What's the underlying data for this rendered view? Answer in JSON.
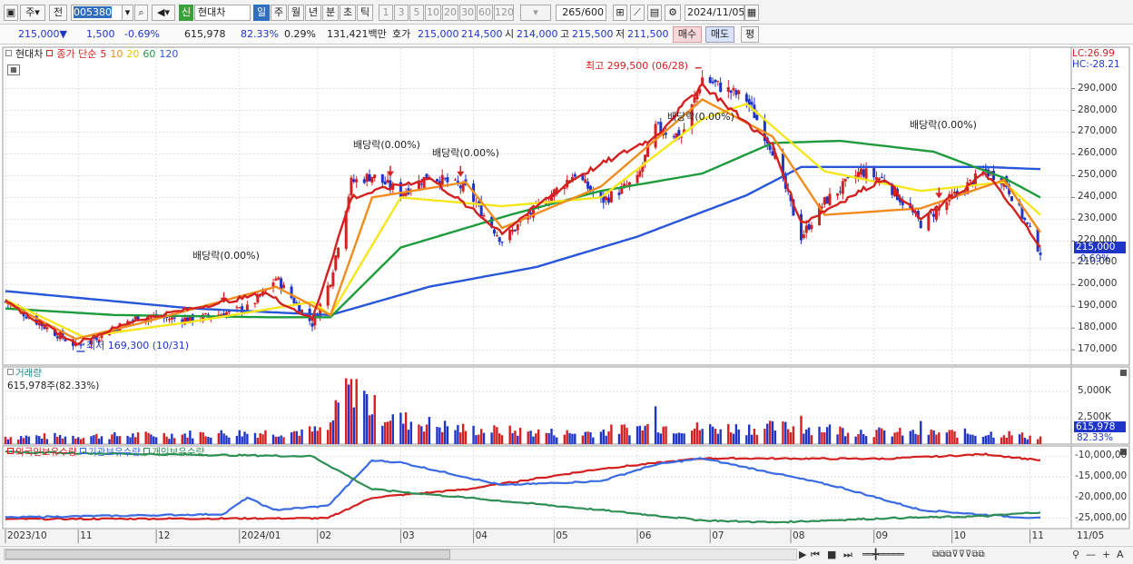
{
  "toolbar": {
    "type_label": "주",
    "prev_label": "전",
    "code": "005380",
    "listing_badge": "신",
    "stock_name": "현대차",
    "periods": [
      "일",
      "주",
      "월",
      "년",
      "분",
      "초",
      "틱"
    ],
    "active_period": "일",
    "intervals": [
      "1",
      "3",
      "5",
      "10",
      "20",
      "30",
      "60",
      "120"
    ],
    "count": "265",
    "count_max": "/600",
    "date": "2024/11/05"
  },
  "quote": {
    "price": "215,000",
    "direction": "▼",
    "change": "1,500",
    "change_pct": "-0.69%",
    "volume": "615,978",
    "volume_ratio": "82.33%",
    "turnover_pct": "0.29%",
    "amount": "131,421백만",
    "bid_label": "호가",
    "ask_price": "215,000",
    "bid_price": "214,500",
    "open_label": "시",
    "open": "214,000",
    "high_label": "고",
    "high": "215,500",
    "low_label": "저",
    "low": "211,500",
    "buy_label": "매수",
    "sell_label": "매도",
    "eval_label": "평"
  },
  "price_panel": {
    "stock_label": "현대차",
    "ma_label": "종가 단순",
    "ma_periods": [
      "5",
      "10",
      "20",
      "60",
      "120"
    ],
    "lc": "LC:26.99",
    "hc": "HC:-28.21",
    "current_price": "215,000",
    "current_pct": "-0.69%",
    "high_annotation": "최고 299,500 (06/28)",
    "low_annotation": "최저 169,300 (10/31)",
    "dividend_annotation": "배당락(0.00%)"
  },
  "volume_panel": {
    "title": "거래량",
    "value_label": "615,978주(82.33%)",
    "current": "615,978",
    "pct": "82.33%"
  },
  "holding_panel": {
    "series_labels": [
      "외국인보유수량",
      "기관보유수량",
      "개인보유수량"
    ]
  },
  "x_axis": [
    "2023/10",
    "11",
    "12",
    "2024/01",
    "02",
    "03",
    "04",
    "05",
    "06",
    "07",
    "08",
    "09",
    "10",
    "11",
    "11/05"
  ],
  "colors": {
    "up": "#d32020",
    "down": "#1f35c7",
    "ma5": "#d32020",
    "ma10": "#f08c1e",
    "ma20": "#f5e61e",
    "ma60": "#1e9b3c",
    "ma120": "#2856d8",
    "foreign": "#d32020",
    "institution": "#3a6be0",
    "individual": "#2e8f55",
    "grid": "#dedede"
  },
  "chart_data": [
    {
      "type": "candlestick",
      "title": "현대차",
      "y_axis_ticks": [
        170000,
        180000,
        190000,
        200000,
        210000,
        220000,
        230000,
        240000,
        250000,
        260000,
        270000,
        280000,
        290000
      ],
      "ylim": [
        163000,
        309000
      ],
      "x_months": [
        "2023/10",
        "11",
        "12",
        "2024/01",
        "02",
        "03",
        "04",
        "05",
        "06",
        "07",
        "08",
        "09",
        "10",
        "11"
      ],
      "close_anchors": [
        [
          "2023-10-04",
          192000
        ],
        [
          "2023-10-20",
          180000
        ],
        [
          "2023-10-31",
          172000
        ],
        [
          "2023-11-10",
          177000
        ],
        [
          "2023-11-24",
          185000
        ],
        [
          "2023-12-15",
          184000
        ],
        [
          "2024-01-05",
          189000
        ],
        [
          "2024-01-12",
          197000
        ],
        [
          "2024-01-16",
          203000
        ],
        [
          "2024-01-30",
          182000
        ],
        [
          "2024-02-06",
          202000
        ],
        [
          "2024-02-14",
          247000
        ],
        [
          "2024-02-22",
          250000
        ],
        [
          "2024-03-04",
          242000
        ],
        [
          "2024-03-15",
          250000
        ],
        [
          "2024-03-29",
          244000
        ],
        [
          "2024-04-12",
          220000
        ],
        [
          "2024-04-25",
          235000
        ],
        [
          "2024-05-10",
          251000
        ],
        [
          "2024-05-20",
          238000
        ],
        [
          "2024-06-03",
          248000
        ],
        [
          "2024-06-10",
          272000
        ],
        [
          "2024-06-20",
          268000
        ],
        [
          "2024-06-28",
          295000
        ],
        [
          "2024-07-15",
          285000
        ],
        [
          "2024-07-25",
          262000
        ],
        [
          "2024-08-05",
          222000
        ],
        [
          "2024-08-14",
          238000
        ],
        [
          "2024-08-28",
          252000
        ],
        [
          "2024-09-06",
          248000
        ],
        [
          "2024-09-20",
          228000
        ],
        [
          "2024-10-04",
          242000
        ],
        [
          "2024-10-15",
          252000
        ],
        [
          "2024-10-22",
          248000
        ],
        [
          "2024-11-05",
          215000
        ]
      ],
      "ma": {
        "5": [
          [
            "2023-10-04",
            192000
          ],
          [
            "2023-10-31",
            173000
          ],
          [
            "2023-11-24",
            184000
          ],
          [
            "2024-01-12",
            196000
          ],
          [
            "2024-01-30",
            184000
          ],
          [
            "2024-02-14",
            240000
          ],
          [
            "2024-03-15",
            249000
          ],
          [
            "2024-04-12",
            224000
          ],
          [
            "2024-05-10",
            249000
          ],
          [
            "2024-06-10",
            268000
          ],
          [
            "2024-06-28",
            292000
          ],
          [
            "2024-07-25",
            264000
          ],
          [
            "2024-08-05",
            228000
          ],
          [
            "2024-09-06",
            249000
          ],
          [
            "2024-09-20",
            230000
          ],
          [
            "2024-10-15",
            251000
          ],
          [
            "2024-11-05",
            218000
          ]
        ],
        "10": [
          [
            "2023-10-04",
            192000
          ],
          [
            "2023-10-31",
            175000
          ],
          [
            "2023-11-24",
            182000
          ],
          [
            "2024-01-16",
            199000
          ],
          [
            "2024-02-06",
            186000
          ],
          [
            "2024-02-22",
            240000
          ],
          [
            "2024-03-29",
            247000
          ],
          [
            "2024-04-12",
            226000
          ],
          [
            "2024-05-20",
            245000
          ],
          [
            "2024-06-28",
            285000
          ],
          [
            "2024-07-25",
            268000
          ],
          [
            "2024-08-14",
            232000
          ],
          [
            "2024-09-20",
            235000
          ],
          [
            "2024-10-22",
            248000
          ],
          [
            "2024-11-05",
            224000
          ]
        ],
        "20": [
          [
            "2023-10-04",
            193000
          ],
          [
            "2023-11-03",
            176000
          ],
          [
            "2023-12-15",
            183000
          ],
          [
            "2024-01-30",
            192000
          ],
          [
            "2024-02-06",
            186000
          ],
          [
            "2024-03-04",
            240000
          ],
          [
            "2024-04-12",
            236000
          ],
          [
            "2024-05-20",
            240000
          ],
          [
            "2024-06-28",
            276000
          ],
          [
            "2024-07-15",
            283000
          ],
          [
            "2024-08-14",
            252000
          ],
          [
            "2024-09-20",
            243000
          ],
          [
            "2024-10-22",
            247000
          ],
          [
            "2024-11-05",
            232000
          ]
        ],
        "60": [
          [
            "2023-10-04",
            189000
          ],
          [
            "2023-11-15",
            186000
          ],
          [
            "2024-01-12",
            185000
          ],
          [
            "2024-02-06",
            185000
          ],
          [
            "2024-03-04",
            217000
          ],
          [
            "2024-04-15",
            232000
          ],
          [
            "2024-05-20",
            243000
          ],
          [
            "2024-06-28",
            251000
          ],
          [
            "2024-07-25",
            265000
          ],
          [
            "2024-08-20",
            266000
          ],
          [
            "2024-09-25",
            261000
          ],
          [
            "2024-10-22",
            249000
          ],
          [
            "2024-11-05",
            240000
          ]
        ],
        "120": [
          [
            "2023-10-04",
            197000
          ],
          [
            "2023-12-15",
            189000
          ],
          [
            "2024-02-06",
            186000
          ],
          [
            "2024-03-15",
            199000
          ],
          [
            "2024-04-25",
            208000
          ],
          [
            "2024-06-03",
            222000
          ],
          [
            "2024-07-15",
            241000
          ],
          [
            "2024-08-05",
            254000
          ],
          [
            "2024-09-20",
            254000
          ],
          [
            "2024-10-15",
            254000
          ],
          [
            "2024-11-05",
            253000
          ]
        ]
      },
      "events": [
        {
          "label": "배당락(0.00%)",
          "date": "2023-12-27"
        },
        {
          "label": "배당락(0.00%)",
          "date": "2024-02-29"
        },
        {
          "label": "배당락(0.00%)",
          "date": "2024-03-27"
        },
        {
          "label": "배당락(0.00%)",
          "date": "2024-09-27"
        }
      ],
      "high": {
        "value": 299500,
        "date": "2024-06-28"
      },
      "low": {
        "value": 169300,
        "date": "2023-10-31"
      }
    },
    {
      "type": "bar",
      "title": "거래량",
      "y_axis_ticks": [
        "2,500K",
        "5,000K"
      ],
      "ylim": [
        0,
        7000000
      ],
      "volume_anchors": [
        [
          "2023-10-04",
          700000
        ],
        [
          "2023-11-15",
          800000
        ],
        [
          "2024-01-12",
          1100000
        ],
        [
          "2024-02-05",
          1300000
        ],
        [
          "2024-02-14",
          6200000
        ],
        [
          "2024-02-22",
          3400000
        ],
        [
          "2024-03-04",
          2300000
        ],
        [
          "2024-03-29",
          1400000
        ],
        [
          "2024-05-10",
          1000000
        ],
        [
          "2024-06-10",
          1700000
        ],
        [
          "2024-06-28",
          1500000
        ],
        [
          "2024-08-05",
          1600000
        ],
        [
          "2024-09-06",
          1100000
        ],
        [
          "2024-10-22",
          1000000
        ],
        [
          "2024-11-05",
          615978
        ]
      ],
      "spikes": [
        [
          "2024-02-14",
          6200000
        ],
        [
          "2024-02-16",
          6200000
        ],
        [
          "2024-06-10",
          3600000
        ],
        [
          "2024-08-05",
          2700000
        ],
        [
          "2024-09-20",
          2200000
        ]
      ]
    },
    {
      "type": "line",
      "title": "보유수량",
      "y_axis_ticks": [
        "-10,000,00",
        "-15,000,00",
        "-20,000,00",
        "-25,000,00"
      ],
      "ylim": [
        -27500000,
        -7500000
      ],
      "series": [
        {
          "name": "외국인보유수량",
          "anchors": [
            [
              "2023-10-04",
              -25200000
            ],
            [
              "2024-02-05",
              -25000000
            ],
            [
              "2024-02-22",
              -20000000
            ],
            [
              "2024-03-29",
              -18000000
            ],
            [
              "2024-05-20",
              -13000000
            ],
            [
              "2024-06-28",
              -10500000
            ],
            [
              "2024-09-06",
              -10600000
            ],
            [
              "2024-10-15",
              -9500000
            ],
            [
              "2024-11-05",
              -11000000
            ]
          ]
        },
        {
          "name": "기관보유수량",
          "anchors": [
            [
              "2023-10-04",
              -24800000
            ],
            [
              "2023-12-27",
              -24000000
            ],
            [
              "2024-01-05",
              -20000000
            ],
            [
              "2024-01-15",
              -23000000
            ],
            [
              "2024-02-05",
              -22000000
            ],
            [
              "2024-02-22",
              -11000000
            ],
            [
              "2024-03-04",
              -11500000
            ],
            [
              "2024-04-12",
              -17000000
            ],
            [
              "2024-05-20",
              -16000000
            ],
            [
              "2024-06-10",
              -12000000
            ],
            [
              "2024-06-28",
              -10500000
            ],
            [
              "2024-07-25",
              -14000000
            ],
            [
              "2024-08-20",
              -17500000
            ],
            [
              "2024-09-20",
              -23000000
            ],
            [
              "2024-10-22",
              -24500000
            ],
            [
              "2024-11-05",
              -25000000
            ]
          ]
        },
        {
          "name": "개인보유수량",
          "anchors": [
            [
              "2023-10-04",
              -9000000
            ],
            [
              "2024-01-30",
              -10000000
            ],
            [
              "2024-02-22",
              -18000000
            ],
            [
              "2024-03-29",
              -20000000
            ],
            [
              "2024-05-20",
              -23000000
            ],
            [
              "2024-06-28",
              -25500000
            ],
            [
              "2024-07-25",
              -26000000
            ],
            [
              "2024-09-06",
              -25000000
            ],
            [
              "2024-10-15",
              -24500000
            ],
            [
              "2024-11-05",
              -23500000
            ]
          ]
        }
      ]
    }
  ]
}
